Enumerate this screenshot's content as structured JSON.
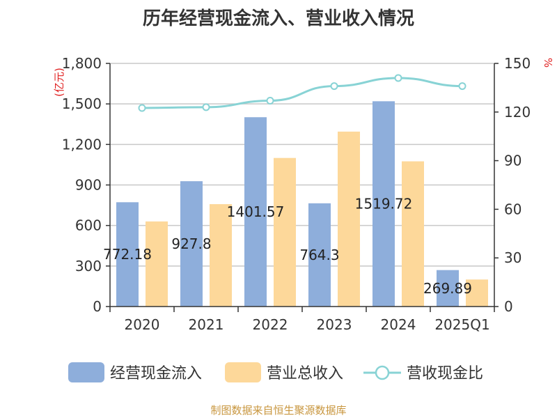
{
  "title": "历年经营现金流入、营业收入情况",
  "source_note": "制图数据来自恒生聚源数据库",
  "colors": {
    "cash_inflow": "#8eaedb",
    "revenue": "#fdd89a",
    "ratio_line": "#88d3d5",
    "axis_unit": "#e02020",
    "grid": "#c8c8c8",
    "axis": "#333333"
  },
  "chart_data": {
    "type": "bar",
    "title": "历年经营现金流入、营业收入情况",
    "categories": [
      "2020",
      "2021",
      "2022",
      "2023",
      "2024",
      "2025Q1"
    ],
    "left_axis": {
      "unit": "亿元",
      "ylim": [
        0,
        1800
      ],
      "ticks": [
        "0",
        "300",
        "600",
        "900",
        "1,200",
        "1,500",
        "1,800"
      ],
      "tick_values": [
        0,
        300,
        600,
        900,
        1200,
        1500,
        1800
      ]
    },
    "right_axis": {
      "unit": "%",
      "ylim": [
        0,
        150
      ],
      "ticks": [
        "0",
        "30",
        "60",
        "90",
        "120",
        "150"
      ],
      "tick_values": [
        0,
        30,
        60,
        90,
        120,
        150
      ]
    },
    "series": [
      {
        "name": "经营现金流入",
        "kind": "bar",
        "axis": "left",
        "values": [
          772.18,
          927.8,
          1401.57,
          764.3,
          1519.72,
          269.89
        ]
      },
      {
        "name": "营业总收入",
        "kind": "bar",
        "axis": "left",
        "values": [
          630,
          758,
          1100,
          1295,
          1075,
          200
        ]
      },
      {
        "name": "营收现金比",
        "kind": "line",
        "axis": "right",
        "values": [
          122.5,
          123,
          127,
          136,
          141,
          136
        ]
      }
    ],
    "data_labels": [
      "772.18",
      "927.8",
      "1401.57",
      "764.3",
      "1519.72",
      "269.89"
    ]
  }
}
